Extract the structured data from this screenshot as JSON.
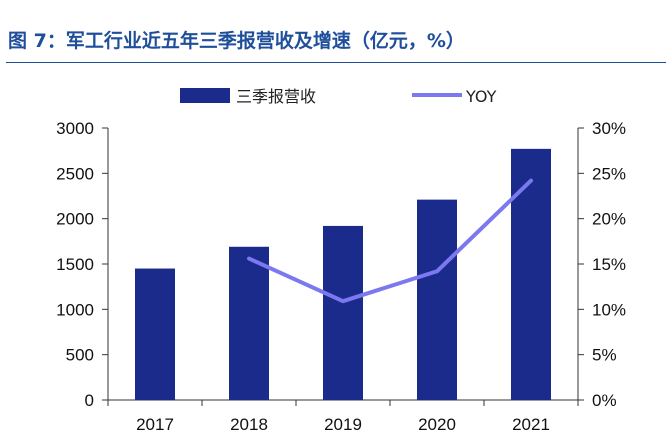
{
  "figure_title": "图 7：军工行业近五年三季报营收及增速（亿元，%）",
  "chart_data": {
    "type": "bar",
    "categories": [
      "2017",
      "2018",
      "2019",
      "2020",
      "2021"
    ],
    "series": [
      {
        "name": "三季报营收",
        "type": "bar",
        "axis": "left",
        "values": [
          1450,
          1690,
          1920,
          2210,
          2770
        ],
        "color": "#1a2b8c"
      },
      {
        "name": "YOY",
        "type": "line",
        "axis": "right",
        "values": [
          null,
          15.6,
          10.9,
          14.2,
          24.2
        ],
        "color": "#7b78f0"
      }
    ],
    "y_left": {
      "min": 0,
      "max": 3000,
      "ticks": [
        0,
        500,
        1000,
        1500,
        2000,
        2500,
        3000
      ]
    },
    "y_right": {
      "min": 0,
      "max": 30,
      "ticks": [
        "0%",
        "5%",
        "10%",
        "15%",
        "20%",
        "25%",
        "30%"
      ]
    },
    "grid": false,
    "legend_position": "top-center"
  }
}
